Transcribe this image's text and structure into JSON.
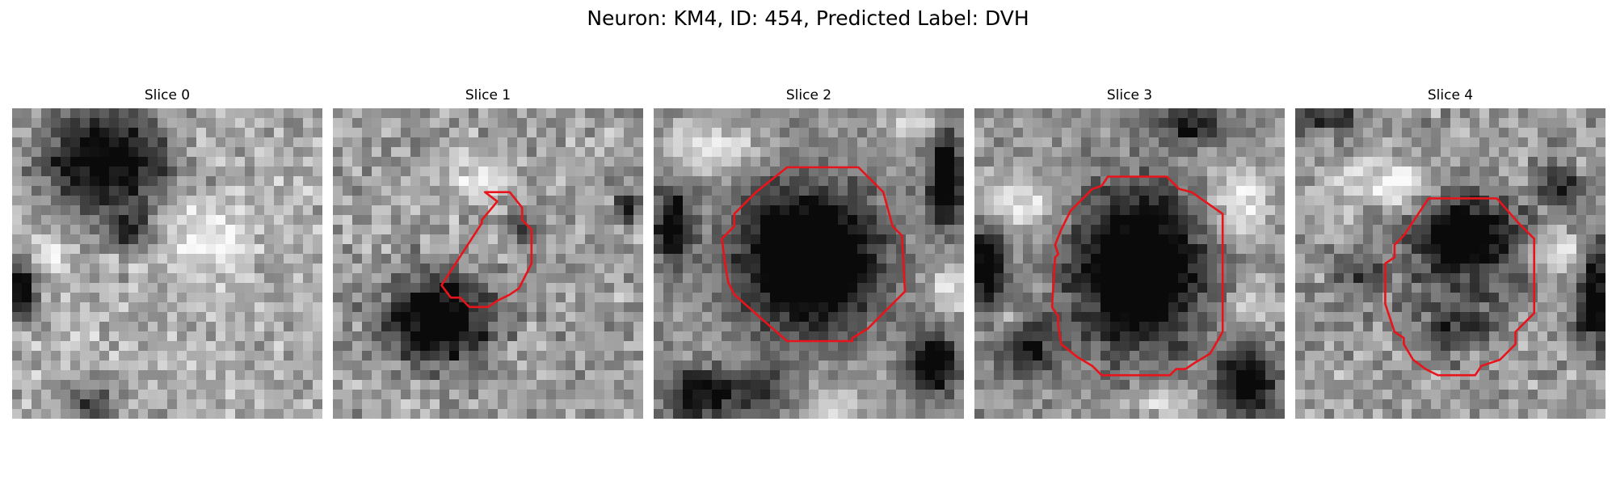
{
  "figure": {
    "title": "Neuron: KM4, ID: 454, Predicted Label: DVH",
    "contour_color": "#e8141b"
  },
  "panels": [
    {
      "title": "Slice 0",
      "contour": null,
      "dark_blobs": [
        [
          0.3,
          0.17,
          0.2,
          0.17,
          0.8
        ],
        [
          0.38,
          0.4,
          0.06,
          0.06,
          0.55
        ],
        [
          0.03,
          0.58,
          0.05,
          0.1,
          0.7
        ],
        [
          0.25,
          0.95,
          0.1,
          0.06,
          0.45
        ]
      ],
      "bright_blobs": [
        [
          0.62,
          0.42,
          0.12,
          0.1,
          0.35
        ],
        [
          0.1,
          0.47,
          0.06,
          0.06,
          0.35
        ]
      ],
      "base": 0.68,
      "noise": 0.3,
      "seed": 11
    },
    {
      "title": "Slice 1",
      "contour": [
        [
          0.49,
          0.27
        ],
        [
          0.57,
          0.27
        ],
        [
          0.61,
          0.32
        ],
        [
          0.61,
          0.36
        ],
        [
          0.64,
          0.39
        ],
        [
          0.64,
          0.5
        ],
        [
          0.6,
          0.58
        ],
        [
          0.57,
          0.6
        ],
        [
          0.53,
          0.62
        ],
        [
          0.5,
          0.64
        ],
        [
          0.44,
          0.64
        ],
        [
          0.41,
          0.61
        ],
        [
          0.38,
          0.61
        ],
        [
          0.35,
          0.57
        ],
        [
          0.48,
          0.37
        ],
        [
          0.48,
          0.36
        ],
        [
          0.53,
          0.3
        ]
      ],
      "dark_blobs": [
        [
          0.34,
          0.68,
          0.17,
          0.14,
          0.8
        ],
        [
          0.6,
          0.38,
          0.05,
          0.05,
          0.4
        ],
        [
          0.95,
          0.32,
          0.04,
          0.05,
          0.55
        ]
      ],
      "bright_blobs": [
        [
          0.45,
          0.2,
          0.12,
          0.08,
          0.25
        ]
      ],
      "base": 0.62,
      "noise": 0.32,
      "seed": 23
    },
    {
      "title": "Slice 2",
      "contour": [
        [
          0.43,
          0.19
        ],
        [
          0.66,
          0.19
        ],
        [
          0.74,
          0.27
        ],
        [
          0.77,
          0.38
        ],
        [
          0.8,
          0.41
        ],
        [
          0.81,
          0.59
        ],
        [
          0.74,
          0.66
        ],
        [
          0.69,
          0.71
        ],
        [
          0.64,
          0.74
        ],
        [
          0.64,
          0.75
        ],
        [
          0.43,
          0.75
        ],
        [
          0.35,
          0.68
        ],
        [
          0.26,
          0.6
        ],
        [
          0.24,
          0.56
        ],
        [
          0.23,
          0.5
        ],
        [
          0.22,
          0.42
        ],
        [
          0.26,
          0.38
        ],
        [
          0.26,
          0.34
        ],
        [
          0.3,
          0.3
        ],
        [
          0.33,
          0.27
        ]
      ],
      "dark_blobs": [
        [
          0.5,
          0.48,
          0.22,
          0.22,
          0.95
        ],
        [
          0.94,
          0.22,
          0.05,
          0.16,
          0.85
        ],
        [
          0.9,
          0.82,
          0.08,
          0.1,
          0.75
        ],
        [
          0.06,
          0.38,
          0.06,
          0.12,
          0.7
        ],
        [
          0.15,
          0.92,
          0.12,
          0.08,
          0.6
        ],
        [
          0.35,
          0.9,
          0.08,
          0.08,
          0.4
        ]
      ],
      "bright_blobs": [
        [
          0.18,
          0.13,
          0.14,
          0.08,
          0.35
        ],
        [
          0.88,
          0.05,
          0.1,
          0.05,
          0.3
        ],
        [
          0.95,
          0.58,
          0.05,
          0.1,
          0.35
        ],
        [
          0.58,
          0.95,
          0.1,
          0.05,
          0.3
        ]
      ],
      "base": 0.58,
      "noise": 0.24,
      "seed": 37
    },
    {
      "title": "Slice 3",
      "contour": [
        [
          0.43,
          0.22
        ],
        [
          0.62,
          0.22
        ],
        [
          0.66,
          0.26
        ],
        [
          0.7,
          0.27
        ],
        [
          0.8,
          0.34
        ],
        [
          0.8,
          0.72
        ],
        [
          0.76,
          0.79
        ],
        [
          0.71,
          0.82
        ],
        [
          0.68,
          0.84
        ],
        [
          0.65,
          0.84
        ],
        [
          0.63,
          0.86
        ],
        [
          0.41,
          0.86
        ],
        [
          0.38,
          0.83
        ],
        [
          0.33,
          0.8
        ],
        [
          0.28,
          0.76
        ],
        [
          0.27,
          0.7
        ],
        [
          0.27,
          0.67
        ],
        [
          0.25,
          0.64
        ],
        [
          0.26,
          0.48
        ],
        [
          0.27,
          0.47
        ],
        [
          0.26,
          0.44
        ],
        [
          0.28,
          0.39
        ],
        [
          0.31,
          0.33
        ],
        [
          0.35,
          0.29
        ],
        [
          0.38,
          0.26
        ],
        [
          0.41,
          0.25
        ]
      ],
      "dark_blobs": [
        [
          0.53,
          0.52,
          0.21,
          0.25,
          0.85
        ],
        [
          0.04,
          0.52,
          0.06,
          0.14,
          0.7
        ],
        [
          0.16,
          0.76,
          0.1,
          0.1,
          0.55
        ],
        [
          0.88,
          0.88,
          0.09,
          0.1,
          0.7
        ],
        [
          0.7,
          0.06,
          0.12,
          0.05,
          0.5
        ]
      ],
      "bright_blobs": [
        [
          0.15,
          0.3,
          0.14,
          0.08,
          0.35
        ],
        [
          0.85,
          0.3,
          0.1,
          0.12,
          0.35
        ],
        [
          0.1,
          0.68,
          0.07,
          0.07,
          0.3
        ],
        [
          0.9,
          0.62,
          0.06,
          0.07,
          0.3
        ],
        [
          0.62,
          0.95,
          0.09,
          0.05,
          0.3
        ]
      ],
      "base": 0.58,
      "noise": 0.26,
      "seed": 53
    },
    {
      "title": "Slice 4",
      "contour": [
        [
          0.43,
          0.29
        ],
        [
          0.65,
          0.29
        ],
        [
          0.72,
          0.37
        ],
        [
          0.77,
          0.42
        ],
        [
          0.77,
          0.66
        ],
        [
          0.71,
          0.72
        ],
        [
          0.71,
          0.76
        ],
        [
          0.66,
          0.81
        ],
        [
          0.6,
          0.83
        ],
        [
          0.58,
          0.86
        ],
        [
          0.46,
          0.86
        ],
        [
          0.42,
          0.84
        ],
        [
          0.38,
          0.81
        ],
        [
          0.35,
          0.76
        ],
        [
          0.35,
          0.74
        ],
        [
          0.32,
          0.72
        ],
        [
          0.29,
          0.63
        ],
        [
          0.29,
          0.5
        ],
        [
          0.32,
          0.48
        ],
        [
          0.32,
          0.44
        ],
        [
          0.35,
          0.41
        ],
        [
          0.37,
          0.38
        ]
      ],
      "dark_blobs": [
        [
          0.55,
          0.42,
          0.18,
          0.14,
          0.75
        ],
        [
          0.52,
          0.7,
          0.14,
          0.1,
          0.35
        ],
        [
          0.96,
          0.6,
          0.05,
          0.18,
          0.7
        ],
        [
          0.2,
          0.55,
          0.08,
          0.08,
          0.45
        ],
        [
          0.85,
          0.25,
          0.06,
          0.08,
          0.5
        ],
        [
          0.1,
          0.03,
          0.1,
          0.05,
          0.5
        ]
      ],
      "bright_blobs": [
        [
          0.3,
          0.24,
          0.14,
          0.08,
          0.35
        ],
        [
          0.18,
          0.58,
          0.04,
          0.04,
          0.3
        ],
        [
          0.85,
          0.46,
          0.07,
          0.08,
          0.3
        ]
      ],
      "base": 0.6,
      "noise": 0.32,
      "seed": 71
    }
  ]
}
